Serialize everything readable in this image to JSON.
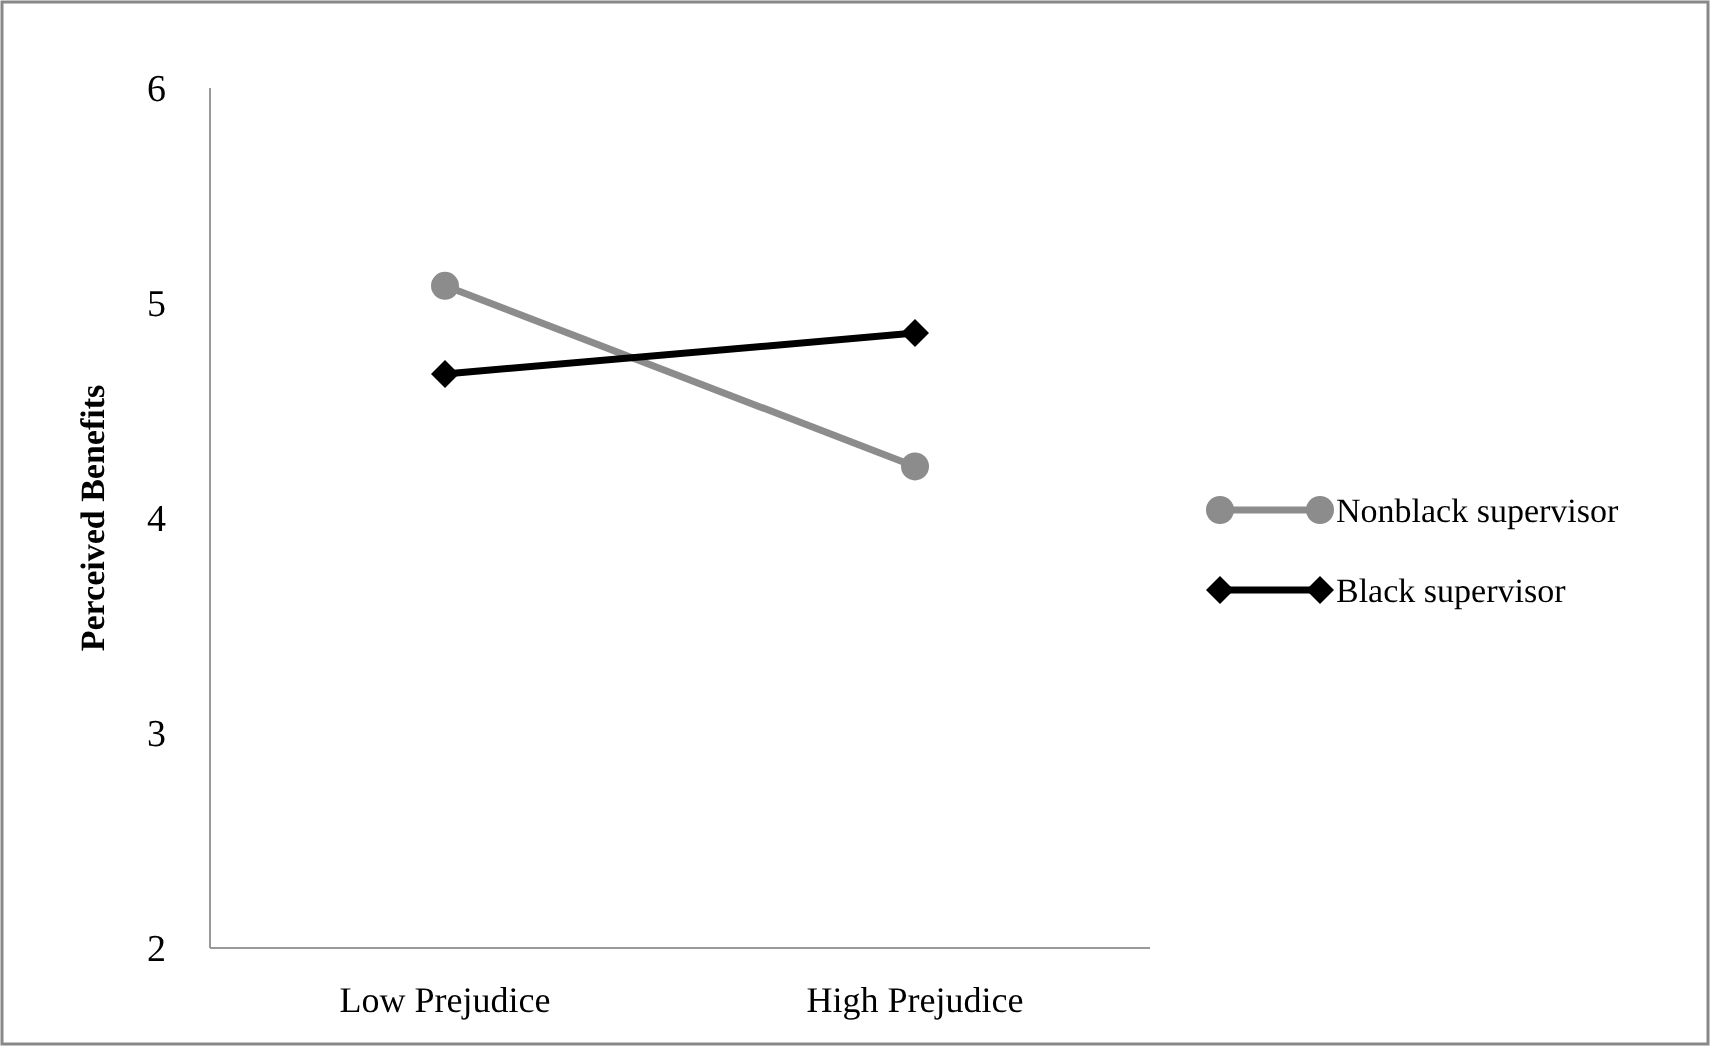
{
  "chart_data": {
    "type": "line",
    "ylabel": "Perceived Benefits",
    "categories": [
      "Low Prejudice",
      "High Prejudice"
    ],
    "series": [
      {
        "name": "Nonblack supervisor",
        "color": "#8c8c8c",
        "values": [
          5.08,
          4.24
        ],
        "marker": "circle"
      },
      {
        "name": "Black supervisor",
        "color": "#000000",
        "values": [
          4.67,
          4.86
        ],
        "marker": "diamond"
      }
    ],
    "ylim": [
      2,
      6
    ],
    "yticks": [
      2,
      3,
      4,
      5,
      6
    ],
    "grid": false,
    "legend": "right",
    "line_style": "solid"
  }
}
